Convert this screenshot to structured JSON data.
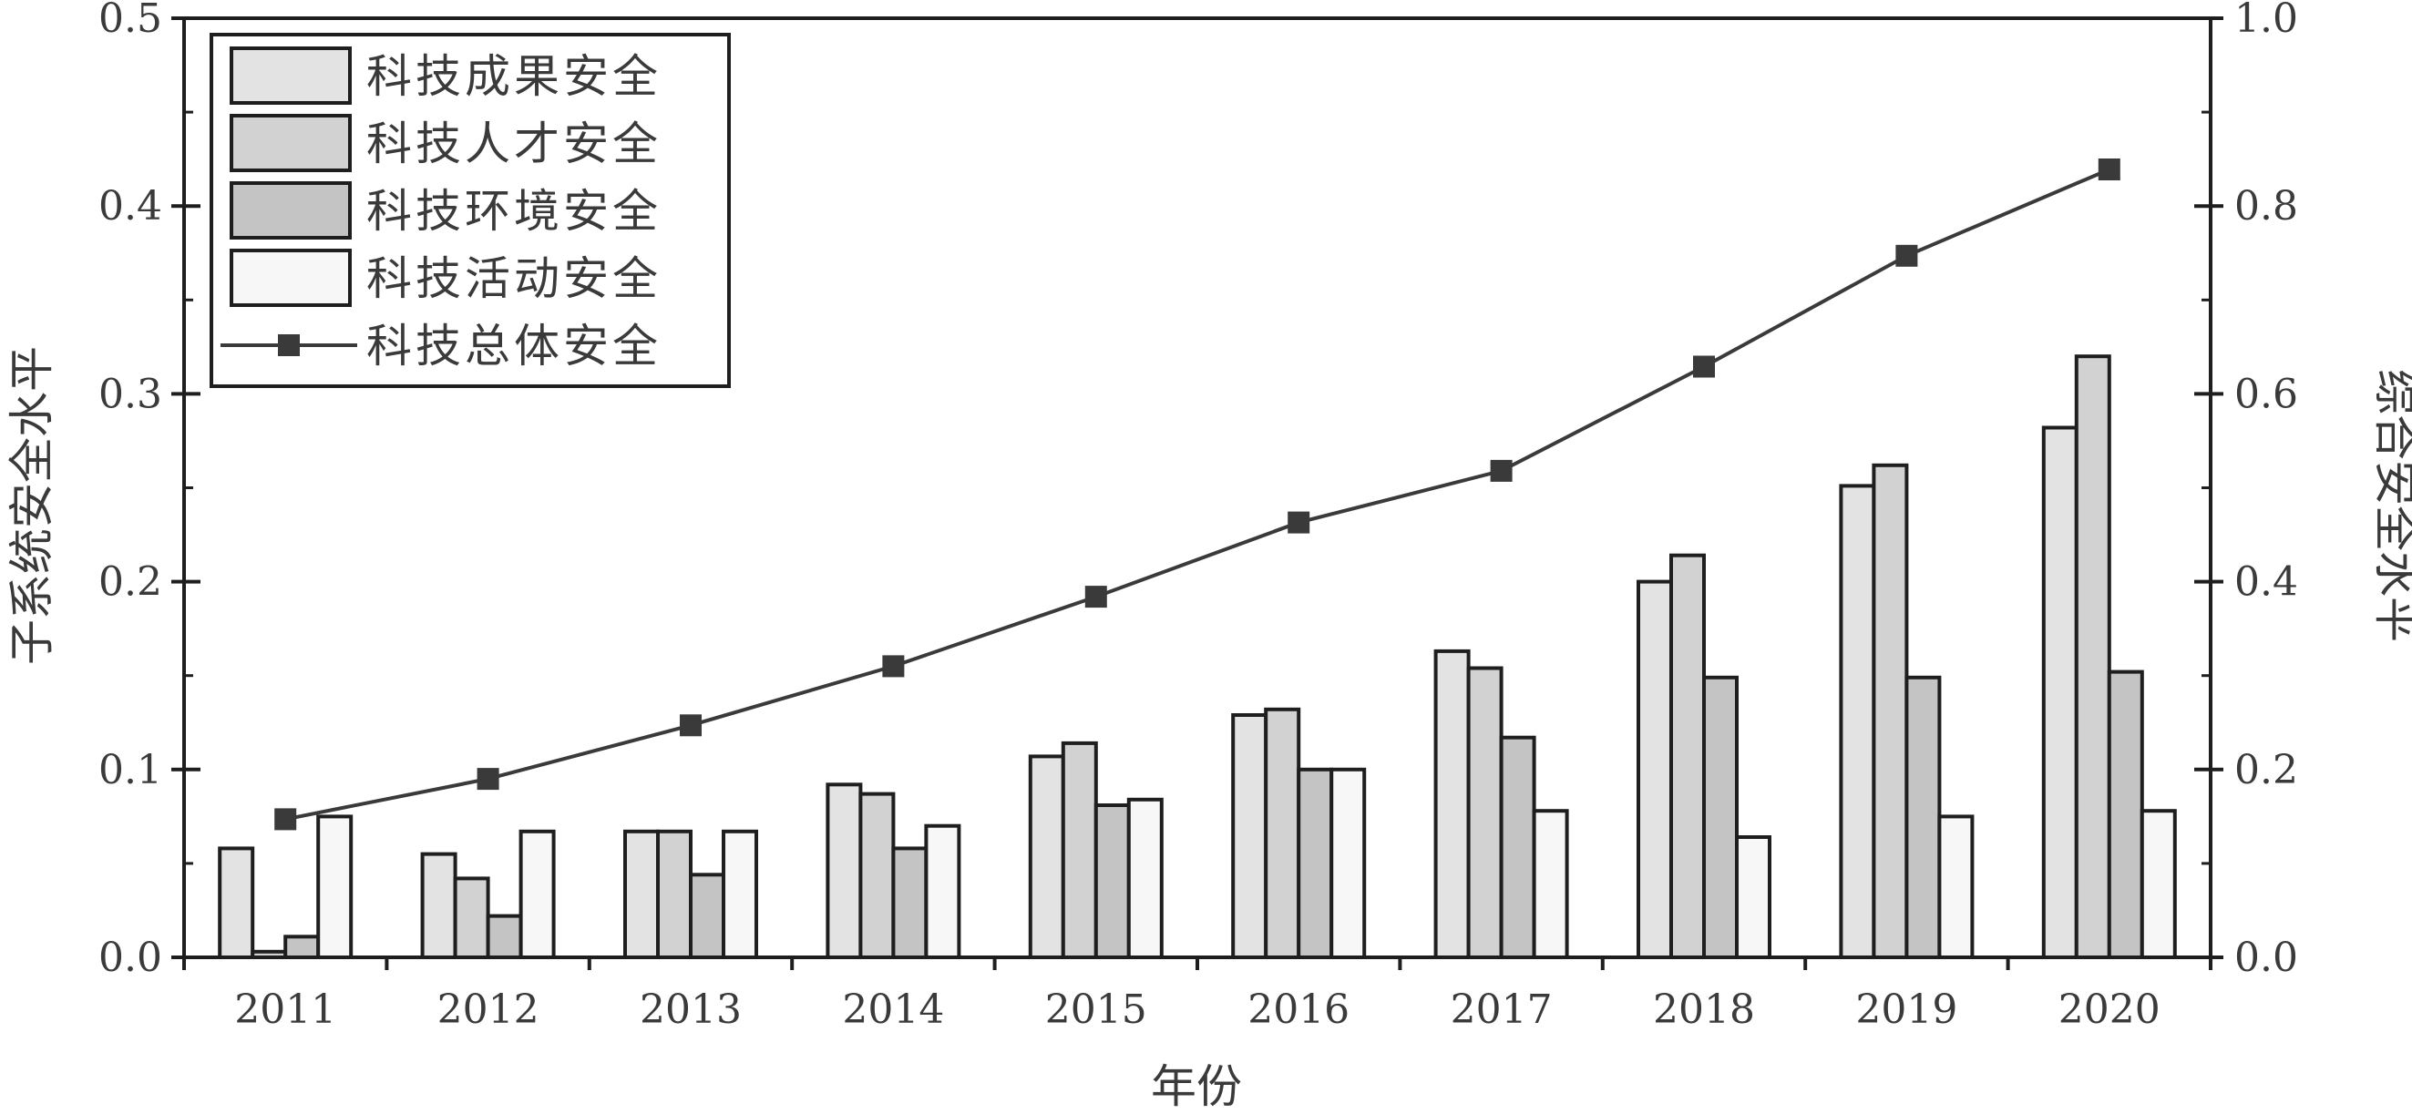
{
  "chart_data": {
    "type": "bar",
    "categories": [
      "2011",
      "2012",
      "2013",
      "2014",
      "2015",
      "2016",
      "2017",
      "2018",
      "2019",
      "2020"
    ],
    "xlabel": "年份",
    "ylabel": "子系统安全水平",
    "y2label": "综合安全水平",
    "ylim": [
      0,
      0.5
    ],
    "y2lim": [
      0,
      1.0
    ],
    "yticks": [
      "0.0",
      "0.1",
      "0.2",
      "0.3",
      "0.4",
      "0.5"
    ],
    "y2ticks": [
      "0.0",
      "0.2",
      "0.4",
      "0.6",
      "0.8",
      "1.0"
    ],
    "legend_position": "top-left",
    "series": [
      {
        "name": "科技成果安全",
        "kind": "bar",
        "color": "#e3e3e3",
        "values": [
          0.058,
          0.055,
          0.067,
          0.092,
          0.107,
          0.129,
          0.163,
          0.2,
          0.251,
          0.282
        ]
      },
      {
        "name": "科技人才安全",
        "kind": "bar",
        "color": "#d2d2d2",
        "values": [
          0.003,
          0.042,
          0.067,
          0.087,
          0.114,
          0.132,
          0.154,
          0.214,
          0.262,
          0.32
        ]
      },
      {
        "name": "科技环境安全",
        "kind": "bar",
        "color": "#c4c4c4",
        "values": [
          0.011,
          0.022,
          0.044,
          0.058,
          0.081,
          0.1,
          0.117,
          0.149,
          0.149,
          0.152
        ]
      },
      {
        "name": "科技活动安全",
        "kind": "bar",
        "color": "#f7f7f7",
        "values": [
          0.075,
          0.067,
          0.067,
          0.07,
          0.084,
          0.1,
          0.078,
          0.064,
          0.075,
          0.078
        ]
      },
      {
        "name": "科技总体安全",
        "kind": "line",
        "axis": "right",
        "color": "#3a3a3a",
        "values": [
          0.147,
          0.19,
          0.247,
          0.31,
          0.384,
          0.463,
          0.518,
          0.629,
          0.747,
          0.839
        ]
      }
    ]
  }
}
